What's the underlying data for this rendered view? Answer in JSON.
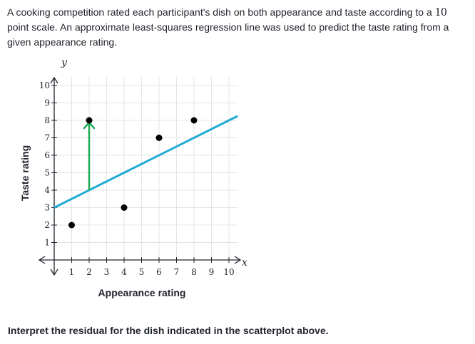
{
  "intro": {
    "part1": "A cooking competition rated each participant's dish on both appearance and taste according to a",
    "scale_number": "10",
    "part2": "point scale. An approximate least-squares regression line was used to predict the taste rating from a given appearance rating."
  },
  "question": "Interpret the residual for the dish indicated in the scatterplot above.",
  "colors": {
    "regression_line": "#1fabd3",
    "residual_arrow": "#1fab54",
    "points": "#000000",
    "grid": "#e4e4e4"
  },
  "chart_data": {
    "type": "scatter",
    "xlabel": "Appearance rating",
    "ylabel": "Taste rating",
    "x_var": "x",
    "y_var": "y",
    "xlim": [
      0,
      10.5
    ],
    "ylim": [
      0,
      10.5
    ],
    "x_ticks": [
      1,
      2,
      3,
      4,
      5,
      6,
      7,
      8,
      9,
      10
    ],
    "y_ticks": [
      1,
      2,
      3,
      4,
      5,
      6,
      7,
      8,
      9,
      10
    ],
    "grid": true,
    "points": [
      {
        "x": 1,
        "y": 2
      },
      {
        "x": 2,
        "y": 8
      },
      {
        "x": 4,
        "y": 3
      },
      {
        "x": 6,
        "y": 7
      },
      {
        "x": 8,
        "y": 8
      }
    ],
    "regression_line": {
      "x1": 0,
      "y1": 3,
      "x2": 10.5,
      "y2": 8.25
    },
    "residual_arrow": {
      "x": 2,
      "from_y": 4,
      "to_y": 8
    }
  }
}
